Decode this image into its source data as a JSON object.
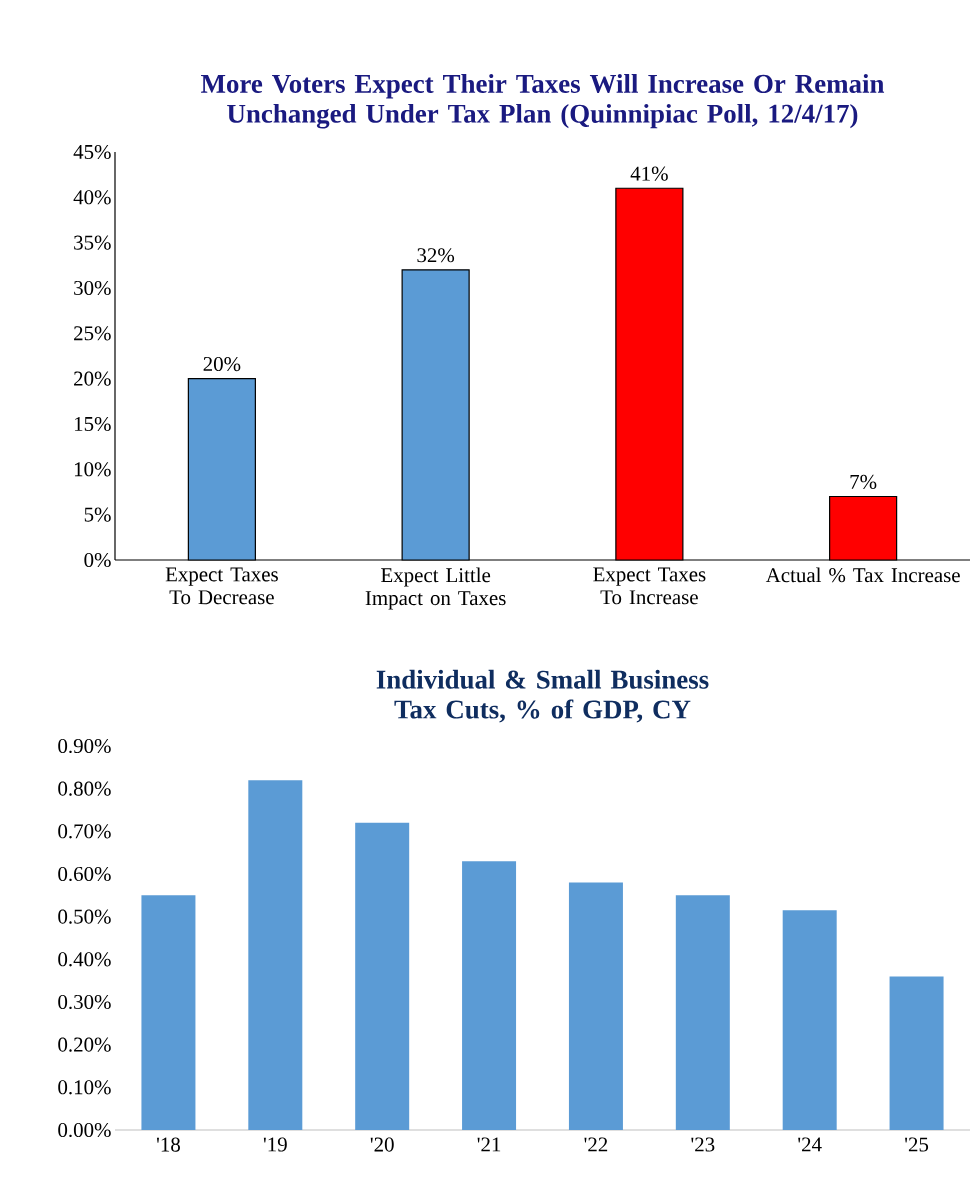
{
  "chart_data": [
    {
      "type": "bar",
      "title": "More Voters Expect Their Taxes Will Increase Or Remain Unchanged Under Tax Plan (Quinnipiac Poll, 12/4/17)",
      "categories": [
        "Expect Taxes To Decrease",
        "Expect Little Impact on Taxes",
        "Expect Taxes To Increase",
        "Actual % Tax Increase"
      ],
      "values": [
        20,
        32,
        41,
        7
      ],
      "colors": [
        "#5b9bd5",
        "#5b9bd5",
        "#ff0000",
        "#ff0000"
      ],
      "value_labels": [
        "20%",
        "32%",
        "41%",
        "7%"
      ],
      "ylim": [
        0,
        45
      ],
      "yticks": [
        {
          "value": 0,
          "label": "0%"
        },
        {
          "value": 5,
          "label": "5%"
        },
        {
          "value": 10,
          "label": "10%"
        },
        {
          "value": 15,
          "label": "15%"
        },
        {
          "value": 20,
          "label": "20%"
        },
        {
          "value": 25,
          "label": "25%"
        },
        {
          "value": 30,
          "label": "30%"
        },
        {
          "value": 35,
          "label": "35%"
        },
        {
          "value": 40,
          "label": "40%"
        },
        {
          "value": 45,
          "label": "45%"
        }
      ]
    },
    {
      "type": "bar",
      "title": "Individual & Small Business Tax Cuts, % of GDP, CY",
      "categories": [
        "'18",
        "'19",
        "'20",
        "'21",
        "'22",
        "'23",
        "'24",
        "'25"
      ],
      "values": [
        0.55,
        0.82,
        0.72,
        0.63,
        0.58,
        0.55,
        0.515,
        0.36
      ],
      "color": "#5b9bd5",
      "ylim": [
        0,
        0.9
      ],
      "yticks": [
        {
          "value": 0,
          "label": "0.00%"
        },
        {
          "value": 0.1,
          "label": "0.10%"
        },
        {
          "value": 0.2,
          "label": "0.20%"
        },
        {
          "value": 0.3,
          "label": "0.30%"
        },
        {
          "value": 0.4,
          "label": "0.40%"
        },
        {
          "value": 0.5,
          "label": "0.50%"
        },
        {
          "value": 0.6,
          "label": "0.60%"
        },
        {
          "value": 0.7,
          "label": "0.70%"
        },
        {
          "value": 0.8,
          "label": "0.80%"
        },
        {
          "value": 0.9,
          "label": "0.90%"
        }
      ]
    }
  ]
}
